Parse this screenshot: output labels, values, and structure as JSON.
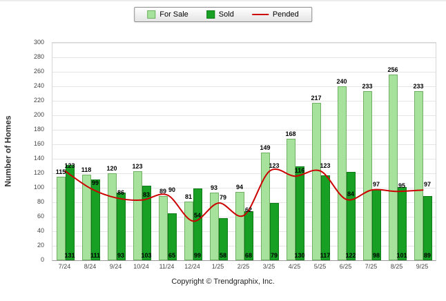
{
  "legend": {
    "for_sale": "For Sale",
    "sold": "Sold",
    "pended": "Pended"
  },
  "ylabel": "Number of Homes",
  "footer": "Copyright © Trendgraphix, Inc.",
  "colors": {
    "for_sale_fill": "#A6E29B",
    "for_sale_border": "#6FAE63",
    "sold_fill": "#17A023",
    "sold_border": "#0E7A18",
    "pended_line": "#CC0000",
    "grid": "#E5E5E5"
  },
  "chart_data": {
    "type": "bar",
    "title": "",
    "xlabel": "",
    "ylabel": "Number of Homes",
    "ylim": [
      0,
      300
    ],
    "ytick_step": 20,
    "grid": true,
    "legend_position": "top",
    "categories": [
      "7/24",
      "8/24",
      "9/24",
      "10/24",
      "11/24",
      "12/24",
      "1/25",
      "2/25",
      "3/25",
      "4/25",
      "5/25",
      "6/25",
      "7/25",
      "8/25",
      "9/25"
    ],
    "series": [
      {
        "name": "For Sale",
        "type": "bar",
        "values": [
          115,
          118,
          120,
          123,
          89,
          81,
          93,
          94,
          149,
          168,
          217,
          240,
          233,
          256,
          233
        ]
      },
      {
        "name": "Sold",
        "type": "bar",
        "values": [
          131,
          111,
          93,
          103,
          65,
          99,
          58,
          68,
          79,
          130,
          117,
          122,
          98,
          101,
          89
        ]
      },
      {
        "name": "Pended",
        "type": "line",
        "values": [
          123,
          99,
          86,
          83,
          90,
          54,
          79,
          62,
          123,
          116,
          123,
          84,
          97,
          95,
          97
        ]
      }
    ]
  }
}
